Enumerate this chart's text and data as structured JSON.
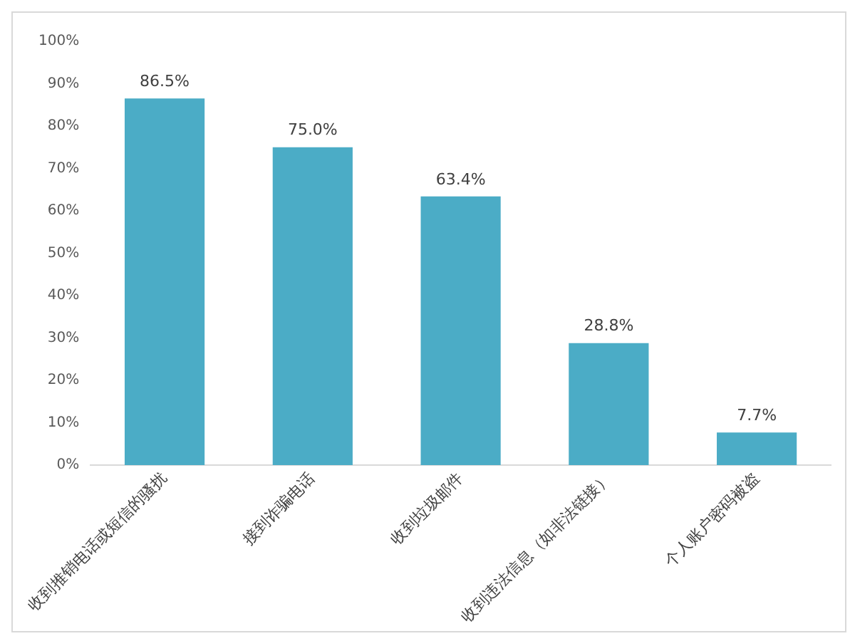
{
  "chart_data": {
    "type": "bar",
    "categories": [
      "收到推销电话或短信的骚扰",
      "接到诈骗电话",
      "收到垃圾邮件",
      "收到违法信息（如非法链接）",
      "个人账户密码被盗"
    ],
    "values": [
      86.5,
      75.0,
      63.4,
      28.8,
      7.7
    ],
    "value_labels": [
      "86.5%",
      "75.0%",
      "63.4%",
      "28.8%",
      "7.7%"
    ],
    "color": "#4bacc6",
    "ylim": [
      0,
      100
    ],
    "yticks": [
      {
        "value": 0,
        "label": "0%"
      },
      {
        "value": 10,
        "label": "10%"
      },
      {
        "value": 20,
        "label": "20%"
      },
      {
        "value": 30,
        "label": "30%"
      },
      {
        "value": 40,
        "label": "40%"
      },
      {
        "value": 50,
        "label": "50%"
      },
      {
        "value": 60,
        "label": "60%"
      },
      {
        "value": 70,
        "label": "70%"
      },
      {
        "value": 80,
        "label": "80%"
      },
      {
        "value": 90,
        "label": "90%"
      },
      {
        "value": 100,
        "label": "100%"
      }
    ],
    "grid": false,
    "legend": false
  }
}
